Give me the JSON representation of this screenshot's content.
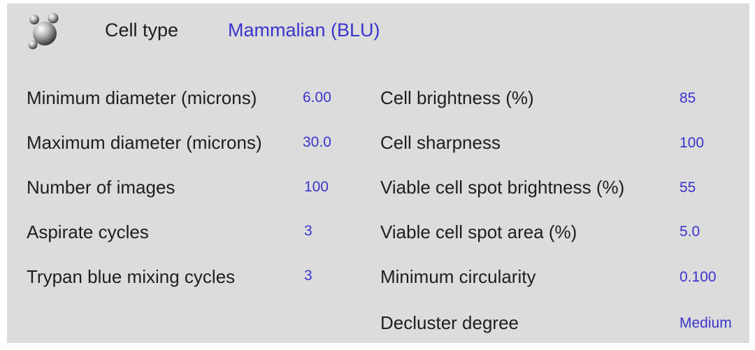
{
  "header": {
    "icon": "cells-icon",
    "label": "Cell type",
    "value": "Mammalian (BLU)"
  },
  "left_settings": [
    {
      "label": "Minimum diameter (microns)",
      "value": "6.00"
    },
    {
      "label": "Maximum diameter (microns)",
      "value": "30.0"
    },
    {
      "label": "Number of images",
      "value": "100"
    },
    {
      "label": "Aspirate cycles",
      "value": "3"
    },
    {
      "label": "Trypan blue mixing cycles",
      "value": "3"
    }
  ],
  "right_settings": [
    {
      "label": "Cell brightness (%)",
      "value": "85"
    },
    {
      "label": "Cell sharpness",
      "value": "100"
    },
    {
      "label": "Viable cell spot brightness (%)",
      "value": "55"
    },
    {
      "label": "Viable cell spot area (%)",
      "value": "5.0"
    },
    {
      "label": "Minimum circularity",
      "value": "0.100"
    },
    {
      "label": "Decluster degree",
      "value": "Medium"
    }
  ],
  "colors": {
    "panel_background": "#dcdcdc",
    "label_text": "#1e1e1e",
    "value_text": "#3a35cc"
  }
}
